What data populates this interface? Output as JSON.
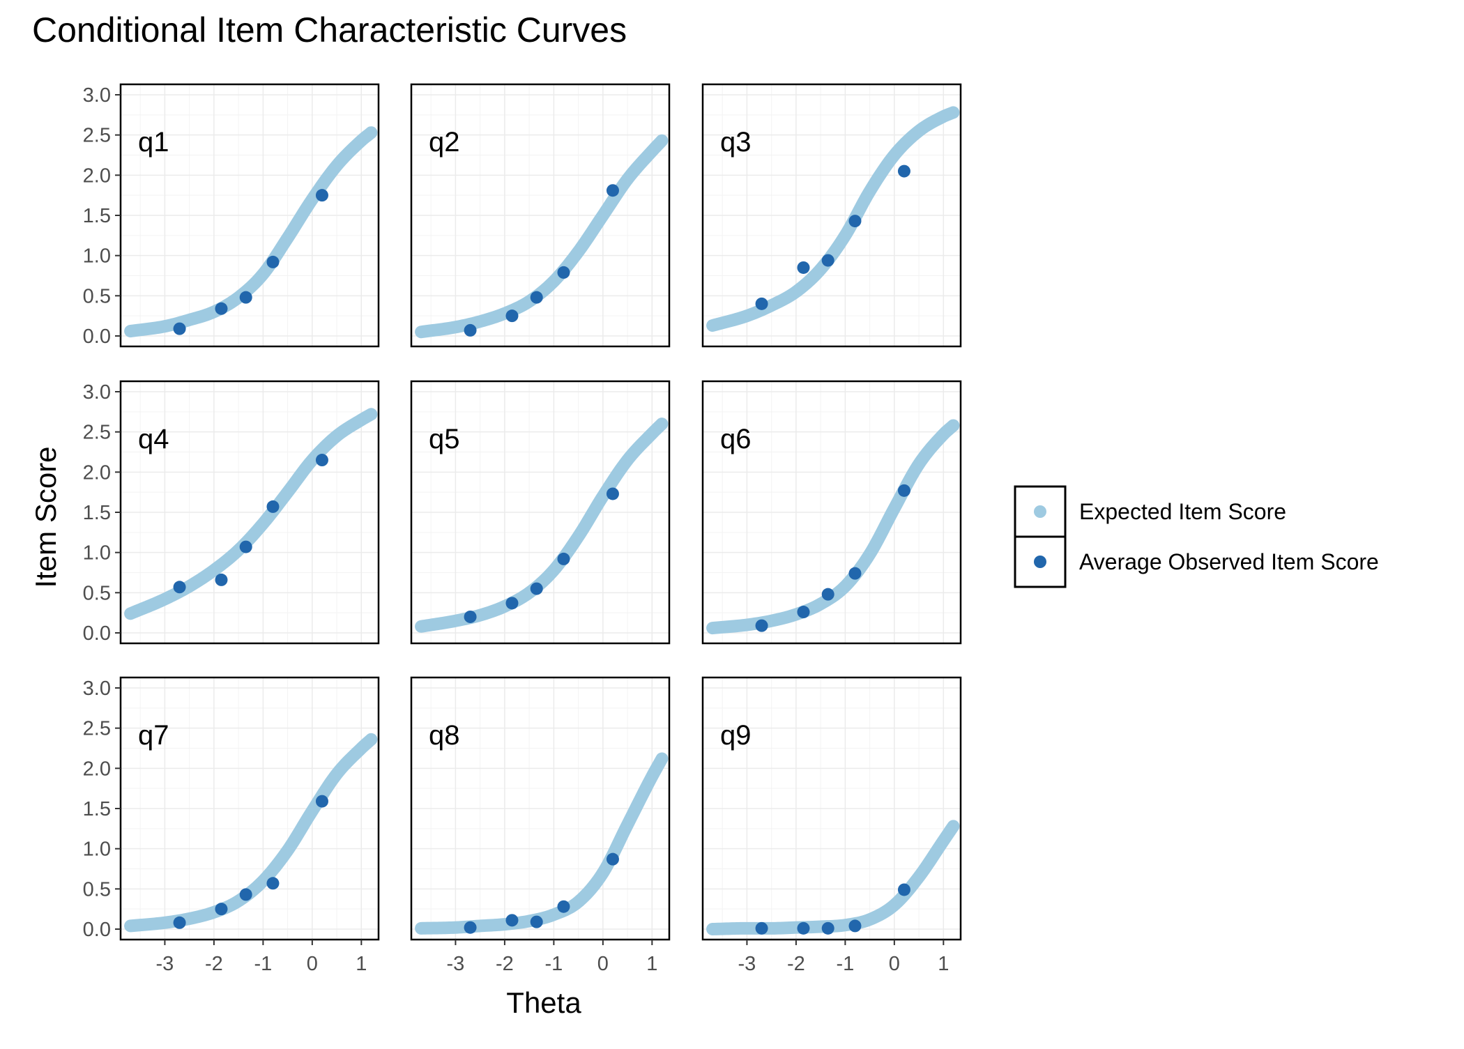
{
  "chart_data": {
    "type": "line",
    "title": "Conditional Item Characteristic Curves",
    "xlabel": "Theta",
    "ylabel": "Item Score",
    "xlim": [
      -3.9,
      1.35
    ],
    "ylim": [
      -0.13,
      3.13
    ],
    "x_ticks": [
      -3,
      -2,
      -1,
      0,
      1
    ],
    "x_tick_labels": [
      "-3",
      "-2",
      "-1",
      "0",
      "1"
    ],
    "y_ticks": [
      0,
      0.5,
      1,
      1.5,
      2,
      2.5,
      3
    ],
    "y_tick_labels": [
      "0.0",
      "0.5",
      "1.0",
      "1.5",
      "2.0",
      "2.5",
      "3.0"
    ],
    "grid": true,
    "facet_layout": "3x3",
    "legend": {
      "position": "right",
      "entries": [
        {
          "label": "Expected Item Score",
          "color": "#9ecae1",
          "marker": "line"
        },
        {
          "label": "Average Observed Item Score",
          "color": "#2166ac",
          "marker": "point"
        }
      ]
    },
    "colors": {
      "expected": "#9ecae1",
      "observed": "#2166ac"
    },
    "panels": [
      {
        "label": "q1",
        "expected": {
          "x": [
            -3.7,
            -3.0,
            -2.5,
            -2.0,
            -1.5,
            -1.0,
            -0.5,
            0.0,
            0.5,
            1.0,
            1.2
          ],
          "y": [
            0.06,
            0.12,
            0.2,
            0.3,
            0.48,
            0.77,
            1.22,
            1.7,
            2.12,
            2.43,
            2.53
          ]
        },
        "observed": {
          "x": [
            -2.7,
            -1.85,
            -1.35,
            -0.8,
            0.2
          ],
          "y": [
            0.09,
            0.34,
            0.48,
            0.92,
            1.75
          ]
        }
      },
      {
        "label": "q2",
        "expected": {
          "x": [
            -3.7,
            -3.0,
            -2.5,
            -2.0,
            -1.5,
            -1.0,
            -0.5,
            0.0,
            0.5,
            1.0,
            1.2
          ],
          "y": [
            0.05,
            0.11,
            0.18,
            0.28,
            0.43,
            0.68,
            1.05,
            1.5,
            1.95,
            2.3,
            2.43
          ]
        },
        "observed": {
          "x": [
            -2.7,
            -1.85,
            -1.35,
            -0.8,
            0.2
          ],
          "y": [
            0.07,
            0.25,
            0.48,
            0.79,
            1.81
          ]
        }
      },
      {
        "label": "q3",
        "expected": {
          "x": [
            -3.7,
            -3.0,
            -2.5,
            -2.0,
            -1.5,
            -1.0,
            -0.5,
            0.0,
            0.5,
            1.0,
            1.2
          ],
          "y": [
            0.13,
            0.25,
            0.38,
            0.55,
            0.83,
            1.25,
            1.8,
            2.25,
            2.55,
            2.73,
            2.78
          ]
        },
        "observed": {
          "x": [
            -2.7,
            -1.85,
            -1.35,
            -0.8,
            0.2
          ],
          "y": [
            0.4,
            0.85,
            0.94,
            1.43,
            2.05
          ]
        }
      },
      {
        "label": "q4",
        "expected": {
          "x": [
            -3.7,
            -3.0,
            -2.5,
            -2.0,
            -1.5,
            -1.0,
            -0.5,
            0.0,
            0.5,
            1.0,
            1.2
          ],
          "y": [
            0.24,
            0.42,
            0.58,
            0.78,
            1.03,
            1.36,
            1.75,
            2.15,
            2.45,
            2.65,
            2.72
          ]
        },
        "observed": {
          "x": [
            -2.7,
            -1.85,
            -1.35,
            -0.8,
            0.2
          ],
          "y": [
            0.57,
            0.66,
            1.07,
            1.57,
            2.15
          ]
        }
      },
      {
        "label": "q5",
        "expected": {
          "x": [
            -3.7,
            -3.0,
            -2.5,
            -2.0,
            -1.5,
            -1.0,
            -0.5,
            0.0,
            0.5,
            1.0,
            1.2
          ],
          "y": [
            0.08,
            0.15,
            0.22,
            0.33,
            0.5,
            0.78,
            1.2,
            1.7,
            2.15,
            2.48,
            2.6
          ]
        },
        "observed": {
          "x": [
            -2.7,
            -1.85,
            -1.35,
            -0.8,
            0.2
          ],
          "y": [
            0.2,
            0.37,
            0.55,
            0.92,
            1.73
          ]
        }
      },
      {
        "label": "q6",
        "expected": {
          "x": [
            -3.7,
            -3.0,
            -2.5,
            -2.0,
            -1.5,
            -1.0,
            -0.5,
            0.0,
            0.5,
            1.0,
            1.2
          ],
          "y": [
            0.06,
            0.1,
            0.15,
            0.23,
            0.36,
            0.58,
            0.98,
            1.55,
            2.1,
            2.47,
            2.58
          ]
        },
        "observed": {
          "x": [
            -2.7,
            -1.85,
            -1.35,
            -0.8,
            0.2
          ],
          "y": [
            0.09,
            0.26,
            0.48,
            0.74,
            1.77
          ]
        }
      },
      {
        "label": "q7",
        "expected": {
          "x": [
            -3.7,
            -3.0,
            -2.5,
            -2.0,
            -1.5,
            -1.0,
            -0.5,
            0.0,
            0.5,
            1.0,
            1.2
          ],
          "y": [
            0.04,
            0.08,
            0.13,
            0.21,
            0.35,
            0.6,
            0.98,
            1.47,
            1.93,
            2.25,
            2.36
          ]
        },
        "observed": {
          "x": [
            -2.7,
            -1.85,
            -1.35,
            -0.8,
            0.2
          ],
          "y": [
            0.08,
            0.25,
            0.43,
            0.57,
            1.59
          ]
        }
      },
      {
        "label": "q8",
        "expected": {
          "x": [
            -3.7,
            -3.0,
            -2.5,
            -2.0,
            -1.5,
            -1.0,
            -0.5,
            0.0,
            0.5,
            1.0,
            1.2
          ],
          "y": [
            0.01,
            0.02,
            0.04,
            0.06,
            0.1,
            0.18,
            0.34,
            0.7,
            1.3,
            1.9,
            2.12
          ]
        },
        "observed": {
          "x": [
            -2.7,
            -1.85,
            -1.35,
            -0.8,
            0.2
          ],
          "y": [
            0.02,
            0.11,
            0.09,
            0.28,
            0.87
          ]
        }
      },
      {
        "label": "q9",
        "expected": {
          "x": [
            -3.7,
            -3.0,
            -2.5,
            -2.0,
            -1.5,
            -1.0,
            -0.5,
            0.0,
            0.5,
            1.0,
            1.2
          ],
          "y": [
            0.0,
            0.01,
            0.01,
            0.02,
            0.03,
            0.05,
            0.12,
            0.3,
            0.65,
            1.1,
            1.28
          ]
        },
        "observed": {
          "x": [
            -2.7,
            -1.85,
            -1.35,
            -0.8,
            0.2
          ],
          "y": [
            0.01,
            0.01,
            0.01,
            0.04,
            0.49
          ]
        }
      }
    ]
  }
}
